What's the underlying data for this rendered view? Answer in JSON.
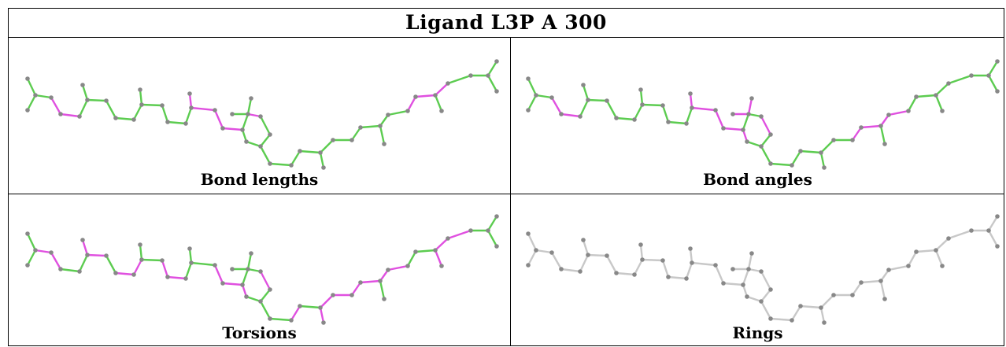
{
  "title": "Ligand L3P A 300",
  "colors": {
    "good": "#5ccc50",
    "bad": "#e050e0",
    "neutral": "#c8c8c8",
    "atom": "#888888"
  },
  "panels": [
    {
      "label": "Bond lengths",
      "palette": "ab"
    },
    {
      "label": "Bond angles",
      "palette": "ab"
    },
    {
      "label": "Torsions",
      "palette": "tors"
    },
    {
      "label": "Rings",
      "palette": "none"
    }
  ]
}
